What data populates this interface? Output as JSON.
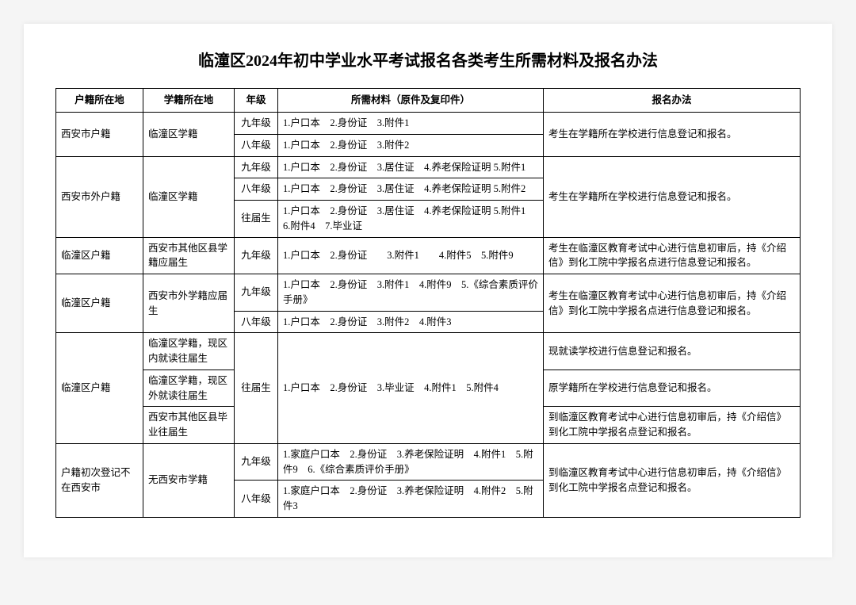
{
  "title": "临潼区2024年初中学业水平考试报名各类考生所需材料及报名办法",
  "headers": {
    "hukou": "户籍所在地",
    "xueji": "学籍所在地",
    "grade": "年级",
    "materials": "所需材料（原件及复印件）",
    "method": "报名办法"
  },
  "row1": {
    "hukou": "西安市户籍",
    "xueji": "临潼区学籍",
    "grade9": "九年级",
    "mat9": "1.户口本　2.身份证　3.附件1",
    "grade8": "八年级",
    "mat8": "1.户口本　2.身份证　3.附件2",
    "method": "考生在学籍所在学校进行信息登记和报名。"
  },
  "row2": {
    "hukou": "西安市外户籍",
    "xueji": "临潼区学籍",
    "grade9": "九年级",
    "mat9": "1.户口本　2.身份证　3.居住证　4.养老保险证明 5.附件1",
    "grade8": "八年级",
    "mat8": "1.户口本　2.身份证　3.居住证　4.养老保险证明 5.附件2",
    "gradePast": "往届生",
    "matPast": "1.户口本　2.身份证　3.居住证　4.养老保险证明 5.附件1　6.附件4　7.毕业证",
    "method": "考生在学籍所在学校进行信息登记和报名。"
  },
  "row3": {
    "hukou": "临潼区户籍",
    "xueji": "西安市其他区县学籍应届生",
    "grade9": "九年级",
    "mat9": "1.户口本　2.身份证　　3.附件1　　4.附件5　5.附件9",
    "method": "考生在临潼区教育考试中心进行信息初审后，持《介绍信》到化工院中学报名点进行信息登记和报名。"
  },
  "row4": {
    "hukou": "临潼区户籍",
    "xueji": "西安市外学籍应届生",
    "grade9": "九年级",
    "mat9": "1.户口本　2.身份证　3.附件1　4.附件9　5.《综合素质评价手册》",
    "grade8": "八年级",
    "mat8": "1.户口本　2.身份证　3.附件2　4.附件3",
    "method": "考生在临潼区教育考试中心进行信息初审后，持《介绍信》到化工院中学报名点进行信息登记和报名。"
  },
  "row5": {
    "hukou": "临潼区户籍",
    "xueji_a": "临潼区学籍，现区内就读往届生",
    "xueji_b": "临潼区学籍，现区外就读往届生",
    "xueji_c": "西安市其他区县毕业往届生",
    "grade": "往届生",
    "mat": "1.户口本　2.身份证　3.毕业证　4.附件1　5.附件4",
    "method_a": "现就读学校进行信息登记和报名。",
    "method_b": "原学籍所在学校进行信息登记和报名。",
    "method_c": "到临潼区教育考试中心进行信息初审后，持《介绍信》到化工院中学报名点登记和报名。"
  },
  "row6": {
    "hukou": "户籍初次登记不在西安市",
    "xueji": "无西安市学籍",
    "grade9": "九年级",
    "mat9": "1.家庭户口本　2.身份证　3.养老保险证明　4.附件1　5.附件9　6.《综合素质评价手册》",
    "grade8": "八年级",
    "mat8": "1.家庭户口本　2.身份证　3.养老保险证明　4.附件2　5.附件3",
    "method": "到临潼区教育考试中心进行信息初审后，持《介绍信》到化工院中学报名点登记和报名。"
  }
}
